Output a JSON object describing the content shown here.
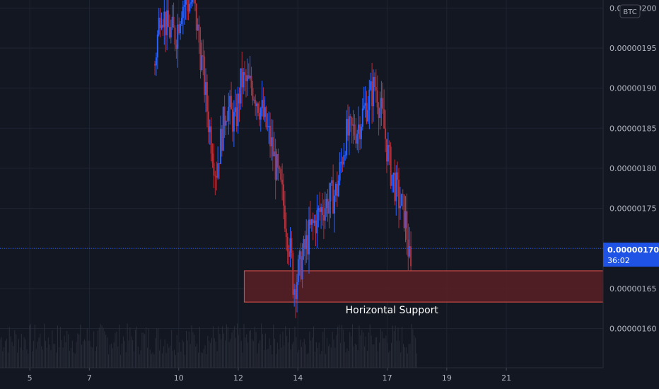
{
  "currency_badge": "BTC",
  "annotation": "Horizontal Support",
  "current_price": {
    "label": "0.00000170",
    "countdown": "36:02",
    "value": 1.7e-06
  },
  "colors": {
    "background": "#131722",
    "grid": "#1f2433",
    "up": "#2962ff",
    "down": "#b2303a",
    "volume": "#2a2e39",
    "support_fill": "#5a1f25",
    "support_stroke": "#e0504a",
    "price_tag": "#1e53e5",
    "axis_text": "#b2b5be"
  },
  "chart_data": {
    "type": "candlestick",
    "title": "",
    "xlabel": "",
    "ylabel": "",
    "x_ticks": [
      {
        "label": "5",
        "day": 5
      },
      {
        "label": "7",
        "day": 7
      },
      {
        "label": "10",
        "day": 10
      },
      {
        "label": "12",
        "day": 12
      },
      {
        "label": "14",
        "day": 14
      },
      {
        "label": "17",
        "day": 17
      },
      {
        "label": "19",
        "day": 19
      },
      {
        "label": "21",
        "day": 21
      }
    ],
    "y_ticks": [
      "0.00000200",
      "0.00000195",
      "0.00000190",
      "0.00000185",
      "0.00000180",
      "0.00000175",
      "0.00000170",
      "0.00000165",
      "0.00000160"
    ],
    "ylim": [
      1.551e-06,
      2.01e-06
    ],
    "xlim": [
      4.0,
      24.25
    ],
    "grid": true,
    "support_zone": {
      "low": 1.633e-06,
      "high": 1.672e-06,
      "x_start": 12.2,
      "label": "Horizontal Support"
    },
    "key_points": [
      {
        "day": 9.2,
        "price": 1.93e-06
      },
      {
        "day": 9.4,
        "price": 2.005e-06
      },
      {
        "day": 9.6,
        "price": 1.975e-06
      },
      {
        "day": 9.9,
        "price": 1.965e-06
      },
      {
        "day": 10.1,
        "price": 2.005e-06
      },
      {
        "day": 10.5,
        "price": 2.008e-06
      },
      {
        "day": 10.8,
        "price": 1.925e-06
      },
      {
        "day": 11.0,
        "price": 1.86e-06
      },
      {
        "day": 11.25,
        "price": 1.795e-06
      },
      {
        "day": 11.6,
        "price": 1.88e-06
      },
      {
        "day": 11.9,
        "price": 1.855e-06
      },
      {
        "day": 12.1,
        "price": 1.91e-06
      },
      {
        "day": 12.5,
        "price": 1.9e-06
      },
      {
        "day": 12.8,
        "price": 1.87e-06
      },
      {
        "day": 13.1,
        "price": 1.83e-06
      },
      {
        "day": 13.5,
        "price": 1.76e-06
      },
      {
        "day": 13.8,
        "price": 1.68e-06
      },
      {
        "day": 13.85,
        "price": 1.65e-06
      },
      {
        "day": 14.1,
        "price": 1.68e-06
      },
      {
        "day": 14.4,
        "price": 1.72e-06
      },
      {
        "day": 14.8,
        "price": 1.75e-06
      },
      {
        "day": 15.3,
        "price": 1.77e-06
      },
      {
        "day": 15.6,
        "price": 1.84e-06
      },
      {
        "day": 16.0,
        "price": 1.85e-06
      },
      {
        "day": 16.2,
        "price": 1.87e-06
      },
      {
        "day": 16.6,
        "price": 1.905e-06
      },
      {
        "day": 16.85,
        "price": 1.86e-06
      },
      {
        "day": 17.1,
        "price": 1.8e-06
      },
      {
        "day": 17.4,
        "price": 1.76e-06
      },
      {
        "day": 17.6,
        "price": 1.74e-06
      },
      {
        "day": 17.8,
        "price": 1.665e-06
      }
    ]
  }
}
